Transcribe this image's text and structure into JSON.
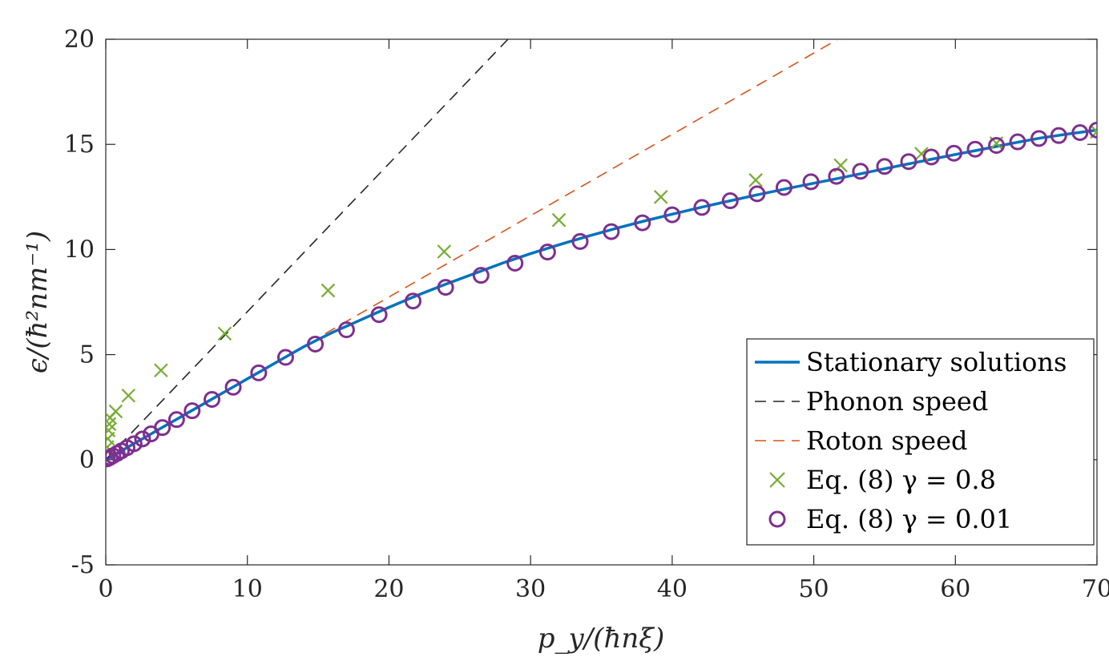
{
  "chart_data": {
    "type": "line",
    "xlabel": "p_y/(ħnξ)",
    "ylabel": "ϵ/(ħ²nm⁻¹)",
    "xlim": [
      0,
      70
    ],
    "ylim": [
      -5,
      20
    ],
    "xticks": [
      "0",
      "10",
      "20",
      "30",
      "40",
      "50",
      "60",
      "70"
    ],
    "yticks": [
      "-5",
      "0",
      "5",
      "10",
      "15",
      "20"
    ],
    "grid": false,
    "legend_position": "bottom-right",
    "series": [
      {
        "name": "Stationary solutions",
        "style": "solid-line",
        "color": "#0072BD",
        "x": [
          0,
          1,
          2,
          3,
          4,
          5,
          6,
          7,
          8,
          9,
          10,
          11,
          12,
          13,
          14,
          15,
          16,
          17,
          18,
          19,
          20,
          22,
          24,
          26,
          28,
          30,
          32,
          34,
          36,
          38,
          40,
          42,
          44,
          46,
          48,
          50,
          52,
          54,
          56,
          58,
          60,
          62,
          64,
          66,
          68,
          70
        ],
        "y": [
          0,
          0.38,
          0.77,
          1.15,
          1.54,
          1.92,
          2.31,
          2.69,
          3.08,
          3.46,
          3.85,
          4.23,
          4.62,
          5.0,
          5.38,
          5.72,
          6.05,
          6.35,
          6.65,
          6.95,
          7.25,
          7.82,
          8.35,
          8.85,
          9.35,
          9.8,
          10.22,
          10.62,
          11.0,
          11.35,
          11.68,
          12.0,
          12.3,
          12.6,
          12.88,
          13.15,
          13.42,
          13.7,
          13.98,
          14.25,
          14.52,
          14.78,
          15.05,
          15.3,
          15.5,
          15.68
        ]
      },
      {
        "name": "Phonon speed",
        "style": "dashed-line",
        "color": "#262626",
        "x": [
          0,
          28.4
        ],
        "y": [
          0,
          20
        ]
      },
      {
        "name": "Roton speed",
        "style": "dashed-line",
        "color": "#D95319",
        "x": [
          15.5,
          51.7
        ],
        "y": [
          6.0,
          20
        ]
      },
      {
        "name": "Eq. (8) γ = 0.8",
        "style": "x-marker",
        "color": "#77AC30",
        "x": [
          0.1,
          0.15,
          0.2,
          0.25,
          0.3,
          0.7,
          1.6,
          3.9,
          8.4,
          15.7,
          23.9,
          32.0,
          39.2,
          45.9,
          51.9,
          57.6,
          62.9,
          70.0
        ],
        "y": [
          0.6,
          1.0,
          1.4,
          1.7,
          2.0,
          2.3,
          3.05,
          4.25,
          6.0,
          8.05,
          9.9,
          11.4,
          12.5,
          13.3,
          14.0,
          14.55,
          15.05,
          15.6
        ]
      },
      {
        "name": "Eq. (8) γ = 0.01",
        "style": "o-marker",
        "color": "#7E2F8E",
        "x": [
          0.1,
          0.3,
          0.5,
          0.8,
          1.1,
          1.5,
          2.0,
          2.6,
          3.2,
          4.0,
          5.0,
          6.1,
          7.5,
          9.0,
          10.8,
          12.7,
          14.8,
          17.0,
          19.3,
          21.7,
          24.0,
          26.5,
          28.9,
          31.2,
          33.5,
          35.7,
          37.9,
          40.0,
          42.1,
          44.1,
          46.0,
          47.9,
          49.8,
          51.6,
          53.3,
          55.0,
          56.7,
          58.3,
          59.9,
          61.4,
          62.9,
          64.4,
          65.9,
          67.3,
          68.8,
          70.0
        ],
        "y": [
          0.04,
          0.11,
          0.19,
          0.3,
          0.42,
          0.57,
          0.76,
          0.99,
          1.23,
          1.53,
          1.91,
          2.33,
          2.87,
          3.45,
          4.13,
          4.87,
          5.5,
          6.18,
          6.9,
          7.55,
          8.2,
          8.77,
          9.35,
          9.88,
          10.38,
          10.85,
          11.27,
          11.65,
          12.0,
          12.32,
          12.65,
          12.95,
          13.22,
          13.48,
          13.72,
          13.95,
          14.18,
          14.4,
          14.58,
          14.77,
          14.95,
          15.12,
          15.28,
          15.42,
          15.56,
          15.68
        ]
      }
    ]
  }
}
